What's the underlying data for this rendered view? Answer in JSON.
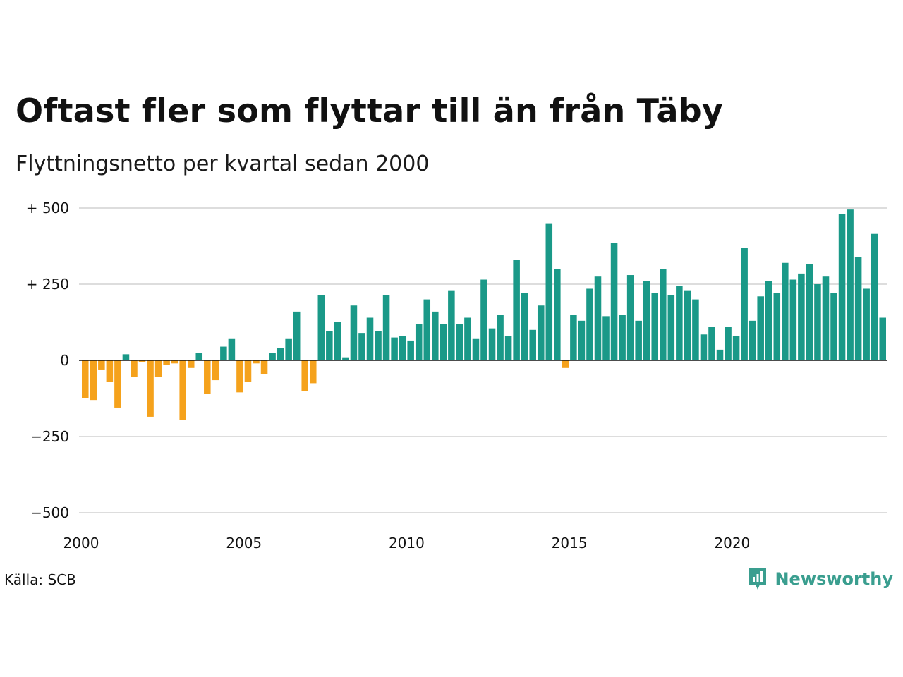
{
  "title": "Oftast fler som flyttar till än från Täby",
  "subtitle": "Flyttningsnetto per kvartal sedan 2000",
  "source": "Källa: SCB",
  "brand": "Newsworthy",
  "colors": {
    "positive": "#1a9988",
    "negative": "#f5a21c",
    "grid": "#dddddd",
    "zero": "#111111",
    "brand": "#3a9e8f"
  },
  "chart_data": {
    "type": "bar",
    "x_label_ticks": [
      "2000",
      "2005",
      "2010",
      "2015",
      "2020"
    ],
    "y_ticks": [
      500,
      250,
      0,
      -250,
      -500
    ],
    "y_tick_labels": [
      "+ 500",
      "+ 250",
      "0",
      "−250",
      "−500"
    ],
    "ylim": [
      -500,
      500
    ],
    "grid": true,
    "start": "2000 Q1",
    "end": "2024 Q3",
    "values": [
      -125,
      -130,
      -30,
      -70,
      -155,
      20,
      -55,
      -5,
      -185,
      -55,
      -15,
      -10,
      -195,
      -25,
      25,
      -110,
      -65,
      45,
      70,
      -105,
      -70,
      -10,
      -45,
      25,
      40,
      70,
      160,
      -100,
      -75,
      215,
      95,
      125,
      10,
      180,
      90,
      140,
      95,
      215,
      75,
      80,
      65,
      120,
      200,
      160,
      120,
      230,
      120,
      140,
      70,
      265,
      105,
      150,
      80,
      330,
      220,
      100,
      180,
      450,
      300,
      -25,
      150,
      130,
      235,
      275,
      145,
      385,
      150,
      280,
      130,
      260,
      220,
      300,
      215,
      245,
      230,
      200,
      85,
      110,
      35,
      110,
      80,
      370,
      130,
      210,
      260,
      220,
      320,
      265,
      285,
      315,
      250,
      275,
      220,
      480,
      495,
      340,
      235,
      415,
      140
    ]
  }
}
